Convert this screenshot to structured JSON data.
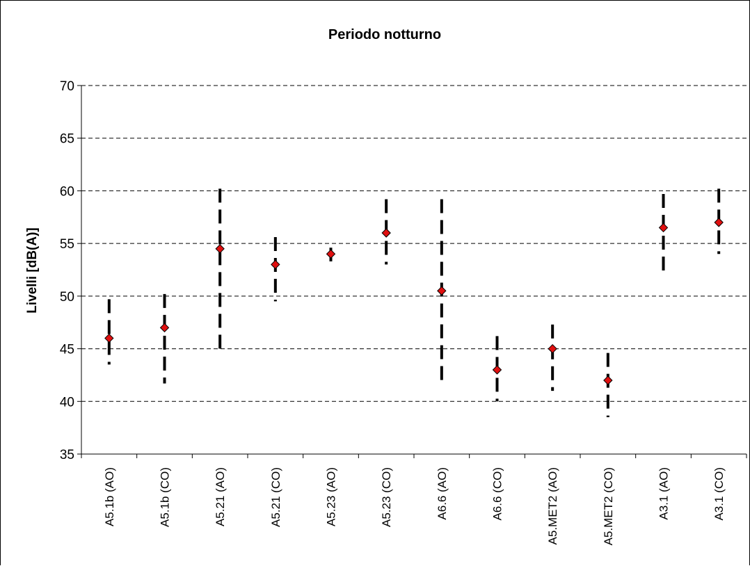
{
  "chart_data": {
    "type": "scatter",
    "title": "Periodo notturno",
    "xlabel": "",
    "ylabel": "Livelli [dB(A)]",
    "ylim": [
      35,
      70
    ],
    "yticks": [
      35,
      40,
      45,
      50,
      55,
      60,
      65,
      70
    ],
    "grid": "horizontal-dashed",
    "legend": "none",
    "categories": [
      "A5.1b (AO)",
      "A5.1b (CO)",
      "A5.21 (AO)",
      "A5.21 (CO)",
      "A5.23 (AO)",
      "A5.23 (CO)",
      "A6.6 (AO)",
      "A6.6 (CO)",
      "A5.MET2 (AO)",
      "A5.MET2 (CO)",
      "A3.1 (AO)",
      "A3.1 (CO)"
    ],
    "series": [
      {
        "values": [
          46.0,
          47.0,
          54.5,
          53.0,
          54.0,
          56.0,
          50.5,
          43.0,
          45.0,
          42.0,
          56.5,
          57.0
        ],
        "range_low": [
          43.5,
          41.7,
          45.0,
          49.5,
          53.3,
          53.0,
          41.7,
          40.0,
          41.0,
          38.5,
          51.8,
          54.0
        ],
        "range_high": [
          49.7,
          50.2,
          60.2,
          55.6,
          54.6,
          59.2,
          59.2,
          46.2,
          47.3,
          44.6,
          59.7,
          60.2
        ],
        "marker_color": "#e01010",
        "range_color": "#000000"
      }
    ]
  }
}
